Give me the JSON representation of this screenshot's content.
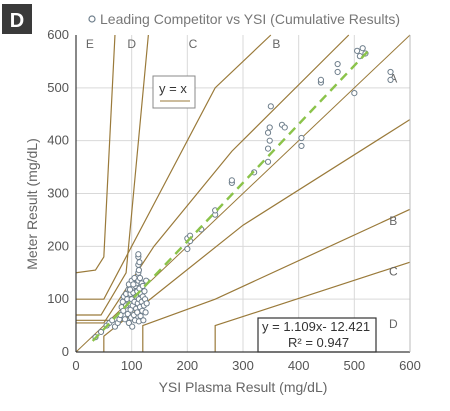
{
  "panel_label": "D",
  "legend_text": "Leading Competitor vs YSI (Cumulative Results)",
  "identity_label": "y = x",
  "colors": {
    "zone_lines": "#9a7a3a",
    "axes": "#3a3a3a",
    "grid": "#d9d9d9",
    "points": "#6f7f8c",
    "trend": "#8bc34a",
    "badge": "#3a3a3a"
  },
  "chart_data": {
    "type": "scatter",
    "xlabel": "YSI Plasma Result (mg/dL)",
    "ylabel": "Meter Result (mg/dL)",
    "xlim": [
      0,
      600
    ],
    "ylim": [
      0,
      600
    ],
    "xticks": [
      0,
      100,
      200,
      300,
      400,
      500,
      600
    ],
    "yticks": [
      0,
      100,
      200,
      300,
      400,
      500,
      600
    ],
    "grid": true,
    "legend": "top",
    "zone_labels": [
      {
        "text": "E",
        "x": 25,
        "y": 575
      },
      {
        "text": "D",
        "x": 100,
        "y": 575
      },
      {
        "text": "C",
        "x": 210,
        "y": 575
      },
      {
        "text": "B",
        "x": 360,
        "y": 575
      },
      {
        "text": "A",
        "x": 570,
        "y": 510
      },
      {
        "text": "B",
        "x": 570,
        "y": 240
      },
      {
        "text": "C",
        "x": 570,
        "y": 145
      },
      {
        "text": "D",
        "x": 570,
        "y": 45
      }
    ],
    "zone_lines": [
      [
        [
          0,
          60
        ],
        [
          60,
          60
        ],
        [
          60,
          60
        ]
      ],
      [
        [
          0,
          150
        ],
        [
          35,
          155
        ],
        [
          50,
          180
        ],
        [
          70,
          600
        ]
      ],
      [
        [
          0,
          70
        ],
        [
          45,
          70
        ],
        [
          90,
          150
        ],
        [
          130,
          600
        ]
      ],
      [
        [
          0,
          100
        ],
        [
          50,
          100
        ],
        [
          150,
          300
        ],
        [
          250,
          500
        ],
        [
          350,
          600
        ]
      ],
      [
        [
          0,
          55
        ],
        [
          50,
          55
        ],
        [
          140,
          200
        ],
        [
          280,
          380
        ],
        [
          490,
          600
        ]
      ],
      [
        [
          50,
          0
        ],
        [
          50,
          30
        ],
        [
          300,
          240
        ],
        [
          600,
          440
        ]
      ],
      [
        [
          120,
          0
        ],
        [
          120,
          50
        ],
        [
          250,
          100
        ],
        [
          600,
          270
        ]
      ],
      [
        [
          250,
          0
        ],
        [
          250,
          50
        ],
        [
          600,
          170
        ]
      ]
    ],
    "identity_line": [
      [
        0,
        0
      ],
      [
        600,
        600
      ]
    ],
    "trendline": {
      "slope": 1.109,
      "intercept": -12.421,
      "equation": "y = 1.109x- 12.421",
      "r2": "R² = 0.947"
    },
    "points": [
      [
        35,
        28
      ],
      [
        45,
        38
      ],
      [
        55,
        50
      ],
      [
        60,
        55
      ],
      [
        65,
        60
      ],
      [
        70,
        48
      ],
      [
        75,
        55
      ],
      [
        78,
        62
      ],
      [
        80,
        70
      ],
      [
        82,
        85
      ],
      [
        84,
        95
      ],
      [
        85,
        78
      ],
      [
        86,
        105
      ],
      [
        88,
        62
      ],
      [
        90,
        110
      ],
      [
        90,
        88
      ],
      [
        92,
        100
      ],
      [
        93,
        72
      ],
      [
        94,
        118
      ],
      [
        95,
        55
      ],
      [
        95,
        128
      ],
      [
        96,
        92
      ],
      [
        98,
        80
      ],
      [
        98,
        110
      ],
      [
        99,
        65
      ],
      [
        100,
        100
      ],
      [
        100,
        120
      ],
      [
        100,
        135
      ],
      [
        101,
        48
      ],
      [
        102,
        88
      ],
      [
        103,
        112
      ],
      [
        104,
        70
      ],
      [
        105,
        95
      ],
      [
        105,
        140
      ],
      [
        106,
        60
      ],
      [
        107,
        125
      ],
      [
        108,
        82
      ],
      [
        108,
        105
      ],
      [
        109,
        130
      ],
      [
        110,
        75
      ],
      [
        110,
        115
      ],
      [
        111,
        92
      ],
      [
        112,
        135
      ],
      [
        113,
        58
      ],
      [
        113,
        100
      ],
      [
        114,
        120
      ],
      [
        115,
        85
      ],
      [
        115,
        140
      ],
      [
        116,
        68
      ],
      [
        117,
        110
      ],
      [
        118,
        95
      ],
      [
        118,
        130
      ],
      [
        119,
        78
      ],
      [
        120,
        105
      ],
      [
        120,
        125
      ],
      [
        121,
        60
      ],
      [
        122,
        88
      ],
      [
        123,
        115
      ],
      [
        124,
        100
      ],
      [
        125,
        75
      ],
      [
        126,
        135
      ],
      [
        127,
        92
      ],
      [
        112,
        150
      ],
      [
        112,
        165
      ],
      [
        112,
        180
      ],
      [
        112,
        185
      ],
      [
        113,
        155
      ],
      [
        114,
        170
      ],
      [
        97,
        118
      ],
      [
        103,
        128
      ],
      [
        200,
        195
      ],
      [
        200,
        215
      ],
      [
        205,
        210
      ],
      [
        205,
        220
      ],
      [
        225,
        232
      ],
      [
        250,
        260
      ],
      [
        250,
        268
      ],
      [
        280,
        320
      ],
      [
        280,
        325
      ],
      [
        320,
        340
      ],
      [
        345,
        360
      ],
      [
        345,
        385
      ],
      [
        348,
        400
      ],
      [
        345,
        415
      ],
      [
        348,
        425
      ],
      [
        350,
        465
      ],
      [
        370,
        430
      ],
      [
        375,
        425
      ],
      [
        405,
        390
      ],
      [
        405,
        405
      ],
      [
        440,
        510
      ],
      [
        440,
        515
      ],
      [
        470,
        530
      ],
      [
        470,
        545
      ],
      [
        500,
        490
      ],
      [
        505,
        570
      ],
      [
        510,
        560
      ],
      [
        515,
        575
      ],
      [
        520,
        565
      ],
      [
        565,
        530
      ],
      [
        565,
        515
      ]
    ]
  }
}
